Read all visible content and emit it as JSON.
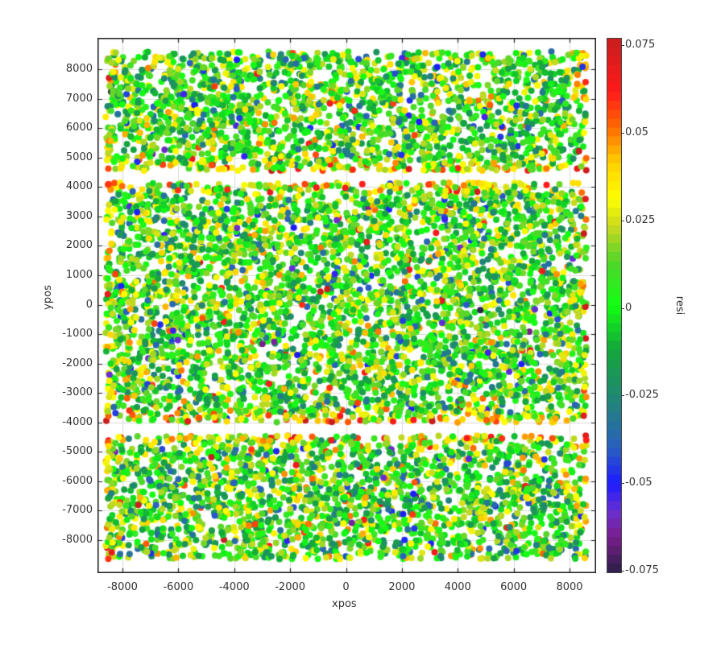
{
  "chart_data": {
    "type": "scatter",
    "title": "",
    "xlabel": "xpos",
    "ylabel": "ypos",
    "colorbar_label": "resi",
    "xlim": [
      -8900,
      8900
    ],
    "ylim": [
      -8900,
      9100
    ],
    "x_ticks": [
      -8000,
      -6000,
      -4000,
      -2000,
      0,
      2000,
      4000,
      6000,
      8000
    ],
    "x_tick_labels": [
      "-8000",
      "-6000",
      "-4000",
      "-2000",
      "0",
      "2000",
      "4000",
      "6000",
      "8000"
    ],
    "y_ticks": [
      8000,
      7000,
      6000,
      5000,
      4000,
      3000,
      2000,
      1000,
      0,
      -1000,
      -2000,
      -3000,
      -4000,
      -5000,
      -6000,
      -7000,
      -8000
    ],
    "y_tick_labels": [
      "8000",
      "7000",
      "6000",
      "5000",
      "4000",
      "3000",
      "2000",
      "1000",
      "0",
      "-1000",
      "-2000",
      "-3000",
      "-4000",
      "-5000",
      "-6000",
      "-7000",
      "-8000"
    ],
    "colorbar_ticks": [
      0.075,
      0.05,
      0.025,
      0,
      -0.025,
      -0.05,
      -0.075
    ],
    "colorbar_tick_labels": [
      "0.075",
      "0.05",
      "0.025",
      "0",
      "-0.025",
      "-0.05",
      "-0.075"
    ],
    "color_range": [
      -0.075,
      0.075
    ],
    "colormap_stops": [
      {
        "v": -0.075,
        "color": "#2a1f45"
      },
      {
        "v": -0.065,
        "color": "#7a1d8c"
      },
      {
        "v": -0.058,
        "color": "#6a2fd0"
      },
      {
        "v": -0.05,
        "color": "#1c1cff"
      },
      {
        "v": -0.04,
        "color": "#2a5fc0"
      },
      {
        "v": -0.025,
        "color": "#1f8a6e"
      },
      {
        "v": -0.012,
        "color": "#14a83a"
      },
      {
        "v": 0,
        "color": "#12ff12"
      },
      {
        "v": 0.012,
        "color": "#4fd62a"
      },
      {
        "v": 0.022,
        "color": "#c8d820"
      },
      {
        "v": 0.03,
        "color": "#ffff00"
      },
      {
        "v": 0.04,
        "color": "#ffd000"
      },
      {
        "v": 0.05,
        "color": "#ff6a00"
      },
      {
        "v": 0.06,
        "color": "#ff1a1a"
      },
      {
        "v": 0.075,
        "color": "#c81e1e"
      }
    ],
    "grid": true,
    "legend": "colorbar-right",
    "marker": "filled-circle",
    "marker_radius_px": 4,
    "data_regions": [
      {
        "name": "top-band",
        "x_range": [
          -8600,
          8600
        ],
        "y_range": [
          4550,
          8600
        ]
      },
      {
        "name": "middle-band",
        "x_range": [
          -8600,
          8600
        ],
        "y_range": [
          -4000,
          4150
        ]
      },
      {
        "name": "bottom-band",
        "x_range": [
          -8600,
          8600
        ],
        "y_range": [
          -8650,
          -4450
        ]
      }
    ],
    "gaps_y": [
      [
        4150,
        4550
      ],
      [
        -4450,
        -4000
      ]
    ],
    "approx_point_count": 9000,
    "distribution_note": "residuals mostly near 0 (green); edges of bands (y near ±4000, ±4500) skew positive (yellow/red); scattered negative (blue/purple) points throughout"
  }
}
